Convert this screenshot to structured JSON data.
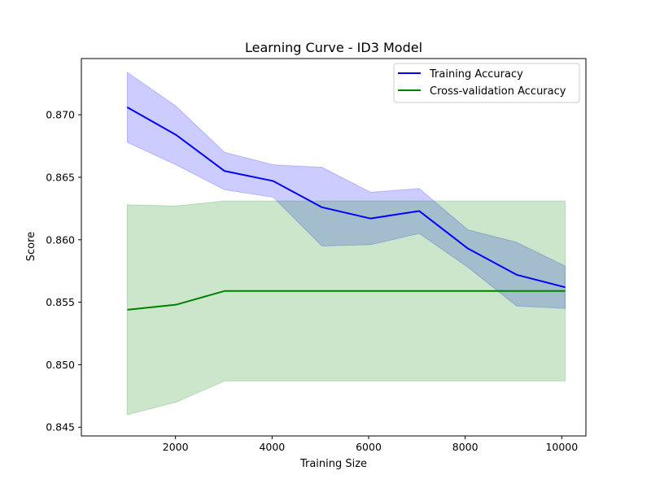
{
  "chart_data": {
    "type": "line",
    "title": "Learning Curve - ID3 Model",
    "xlabel": "Training Size",
    "ylabel": "Score",
    "xlim": [
      50,
      10500
    ],
    "ylim": [
      0.8443,
      0.8745
    ],
    "xticks": [
      2000,
      4000,
      6000,
      8000,
      10000
    ],
    "yticks": [
      0.845,
      0.85,
      0.855,
      0.86,
      0.865,
      0.87
    ],
    "ytick_labels": [
      "0.845",
      "0.850",
      "0.855",
      "0.860",
      "0.865",
      "0.870"
    ],
    "grid": false,
    "legend_position": "top-right",
    "x": [
      1000,
      2008,
      3016,
      4024,
      5032,
      6040,
      7048,
      8056,
      9064,
      10072
    ],
    "series": [
      {
        "name": "Training Accuracy",
        "color": "#0000ff",
        "band_color": "#0000ff",
        "values": [
          0.8706,
          0.8684,
          0.8655,
          0.8647,
          0.8626,
          0.8617,
          0.8623,
          0.8593,
          0.8572,
          0.8562
        ],
        "upper": [
          0.8734,
          0.8707,
          0.867,
          0.866,
          0.8658,
          0.8638,
          0.8641,
          0.8608,
          0.8598,
          0.8579
        ],
        "lower": [
          0.8678,
          0.866,
          0.864,
          0.8634,
          0.8595,
          0.8596,
          0.8605,
          0.8578,
          0.8547,
          0.8545
        ]
      },
      {
        "name": "Cross-validation Accuracy",
        "color": "#008000",
        "band_color": "#008000",
        "values": [
          0.8544,
          0.8548,
          0.8559,
          0.8559,
          0.8559,
          0.8559,
          0.8559,
          0.8559,
          0.8559,
          0.8559
        ],
        "upper": [
          0.8628,
          0.8627,
          0.8631,
          0.8631,
          0.8631,
          0.8631,
          0.8631,
          0.8631,
          0.8631,
          0.8631
        ],
        "lower": [
          0.846,
          0.847,
          0.8487,
          0.8487,
          0.8487,
          0.8487,
          0.8487,
          0.8487,
          0.8487,
          0.8487
        ]
      }
    ]
  }
}
